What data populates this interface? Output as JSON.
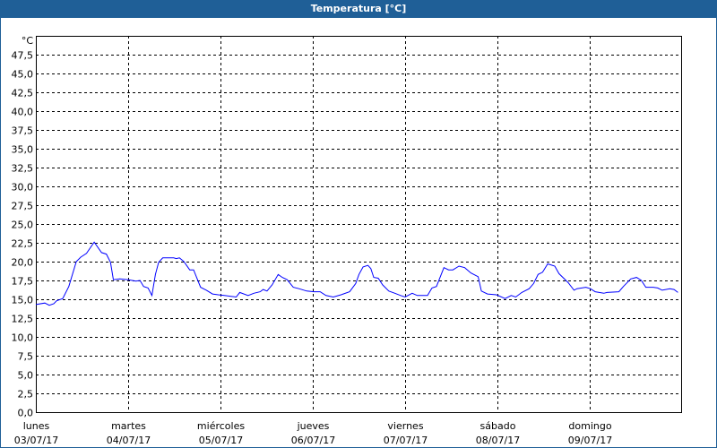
{
  "window": {
    "title": "Temperatura [°C]",
    "accent": "#1f5f97"
  },
  "chart_data": {
    "type": "line",
    "title": "Temperatura [°C]",
    "ylabel": "°C",
    "ylim": [
      0,
      50
    ],
    "xlim": [
      "2017-07-03T00:00",
      "2017-07-10T00:00"
    ],
    "grid": true,
    "y_ticks": [
      "0,0",
      "2,5",
      "5,0",
      "7,5",
      "10,0",
      "12,5",
      "15,0",
      "17,5",
      "20,0",
      "22,5",
      "25,0",
      "27,5",
      "30,0",
      "32,5",
      "35,0",
      "37,5",
      "40,0",
      "42,5",
      "45,0",
      "47,5"
    ],
    "x_ticks": [
      {
        "day": "lunes",
        "date": "03/07/17"
      },
      {
        "day": "martes",
        "date": "04/07/17"
      },
      {
        "day": "miércoles",
        "date": "05/07/17"
      },
      {
        "day": "jueves",
        "date": "06/07/17"
      },
      {
        "day": "viernes",
        "date": "07/07/17"
      },
      {
        "day": "sábado",
        "date": "08/07/17"
      },
      {
        "day": "domingo",
        "date": "09/07/17"
      }
    ],
    "line_color": "#0000ff",
    "series": [
      {
        "points": [
          [
            "2017-07-03T00:00",
            14.3
          ],
          [
            "2017-07-03T02:20",
            14.5
          ],
          [
            "2017-07-03T03:30",
            14.2
          ],
          [
            "2017-07-03T04:40",
            14.4
          ],
          [
            "2017-07-03T05:25",
            14.8
          ],
          [
            "2017-07-03T07:00",
            15.1
          ],
          [
            "2017-07-03T08:35",
            16.7
          ],
          [
            "2017-07-03T10:30",
            20.0
          ],
          [
            "2017-07-03T11:40",
            20.6
          ],
          [
            "2017-07-03T13:10",
            21.1
          ],
          [
            "2017-07-03T15:10",
            22.6
          ],
          [
            "2017-07-03T17:05",
            21.2
          ],
          [
            "2017-07-03T18:20",
            21.0
          ],
          [
            "2017-07-03T19:25",
            19.9
          ],
          [
            "2017-07-03T20:10",
            17.6
          ],
          [
            "2017-07-03T21:50",
            17.7
          ],
          [
            "2017-07-04T00:05",
            17.6
          ],
          [
            "2017-07-04T02:00",
            17.4
          ],
          [
            "2017-07-04T03:05",
            17.5
          ],
          [
            "2017-07-04T04:00",
            16.7
          ],
          [
            "2017-07-04T05:10",
            16.5
          ],
          [
            "2017-07-04T06:10",
            15.5
          ],
          [
            "2017-07-04T07:05",
            18.3
          ],
          [
            "2017-07-04T07:55",
            19.9
          ],
          [
            "2017-07-04T09:00",
            20.5
          ],
          [
            "2017-07-04T11:50",
            20.5
          ],
          [
            "2017-07-04T12:30",
            20.4
          ],
          [
            "2017-07-04T13:20",
            20.5
          ],
          [
            "2017-07-04T14:30",
            20.0
          ],
          [
            "2017-07-04T16:00",
            18.9
          ],
          [
            "2017-07-04T17:00",
            18.9
          ],
          [
            "2017-07-04T18:50",
            16.6
          ],
          [
            "2017-07-04T20:20",
            16.2
          ],
          [
            "2017-07-04T21:55",
            15.7
          ],
          [
            "2017-07-04T23:25",
            15.6
          ],
          [
            "2017-07-05T01:00",
            15.5
          ],
          [
            "2017-07-05T04:05",
            15.3
          ],
          [
            "2017-07-05T05:00",
            15.9
          ],
          [
            "2017-07-05T07:10",
            15.5
          ],
          [
            "2017-07-05T08:40",
            15.8
          ],
          [
            "2017-07-05T10:20",
            16.0
          ],
          [
            "2017-07-05T11:05",
            16.3
          ],
          [
            "2017-07-05T12:05",
            16.1
          ],
          [
            "2017-07-05T13:25",
            16.9
          ],
          [
            "2017-07-05T15:00",
            18.3
          ],
          [
            "2017-07-05T16:05",
            17.9
          ],
          [
            "2017-07-05T17:20",
            17.6
          ],
          [
            "2017-07-05T18:55",
            16.6
          ],
          [
            "2017-07-05T20:25",
            16.4
          ],
          [
            "2017-07-05T22:25",
            16.1
          ],
          [
            "2017-07-06T00:20",
            16.0
          ],
          [
            "2017-07-06T01:55",
            16.0
          ],
          [
            "2017-07-06T03:25",
            15.5
          ],
          [
            "2017-07-06T05:20",
            15.3
          ],
          [
            "2017-07-06T07:20",
            15.6
          ],
          [
            "2017-07-06T09:35",
            16.0
          ],
          [
            "2017-07-06T11:10",
            17.1
          ],
          [
            "2017-07-06T12:00",
            18.3
          ],
          [
            "2017-07-06T13:05",
            19.3
          ],
          [
            "2017-07-06T14:20",
            19.5
          ],
          [
            "2017-07-06T15:05",
            19.1
          ],
          [
            "2017-07-06T15:50",
            17.9
          ],
          [
            "2017-07-06T17:00",
            17.8
          ],
          [
            "2017-07-06T18:10",
            16.9
          ],
          [
            "2017-07-06T19:45",
            16.1
          ],
          [
            "2017-07-06T21:20",
            15.8
          ],
          [
            "2017-07-06T22:50",
            15.5
          ],
          [
            "2017-07-07T00:00",
            15.3
          ],
          [
            "2017-07-07T01:50",
            15.8
          ],
          [
            "2017-07-07T03:10",
            15.5
          ],
          [
            "2017-07-07T05:50",
            15.5
          ],
          [
            "2017-07-07T07:00",
            16.5
          ],
          [
            "2017-07-07T08:10",
            16.7
          ],
          [
            "2017-07-07T10:05",
            19.2
          ],
          [
            "2017-07-07T11:20",
            18.9
          ],
          [
            "2017-07-07T12:25",
            18.9
          ],
          [
            "2017-07-07T14:00",
            19.4
          ],
          [
            "2017-07-07T15:30",
            19.2
          ],
          [
            "2017-07-07T17:05",
            18.5
          ],
          [
            "2017-07-07T19:00",
            18.0
          ],
          [
            "2017-07-07T19:50",
            16.1
          ],
          [
            "2017-07-07T21:25",
            15.7
          ],
          [
            "2017-07-07T23:45",
            15.6
          ],
          [
            "2017-07-08T02:00",
            15.1
          ],
          [
            "2017-07-08T03:35",
            15.5
          ],
          [
            "2017-07-08T04:45",
            15.3
          ],
          [
            "2017-07-08T06:20",
            15.9
          ],
          [
            "2017-07-08T08:15",
            16.4
          ],
          [
            "2017-07-08T09:25",
            17.1
          ],
          [
            "2017-07-08T10:35",
            18.3
          ],
          [
            "2017-07-08T11:45",
            18.6
          ],
          [
            "2017-07-08T13:05",
            19.7
          ],
          [
            "2017-07-08T14:55",
            19.4
          ],
          [
            "2017-07-08T16:00",
            18.4
          ],
          [
            "2017-07-08T18:25",
            17.2
          ],
          [
            "2017-07-08T19:55",
            16.2
          ],
          [
            "2017-07-08T20:40",
            16.4
          ],
          [
            "2017-07-08T23:00",
            16.6
          ],
          [
            "2017-07-09T00:10",
            16.4
          ],
          [
            "2017-07-09T01:25",
            16.0
          ],
          [
            "2017-07-09T03:40",
            15.8
          ],
          [
            "2017-07-09T04:30",
            15.9
          ],
          [
            "2017-07-09T07:35",
            16.0
          ],
          [
            "2017-07-09T08:45",
            16.7
          ],
          [
            "2017-07-09T10:40",
            17.7
          ],
          [
            "2017-07-09T12:10",
            17.9
          ],
          [
            "2017-07-09T13:25",
            17.5
          ],
          [
            "2017-07-09T14:35",
            16.6
          ],
          [
            "2017-07-09T16:30",
            16.6
          ],
          [
            "2017-07-09T17:40",
            16.5
          ],
          [
            "2017-07-09T18:50",
            16.2
          ],
          [
            "2017-07-09T20:50",
            16.4
          ],
          [
            "2017-07-09T21:55",
            16.3
          ],
          [
            "2017-07-09T22:55",
            15.9
          ]
        ]
      }
    ]
  }
}
